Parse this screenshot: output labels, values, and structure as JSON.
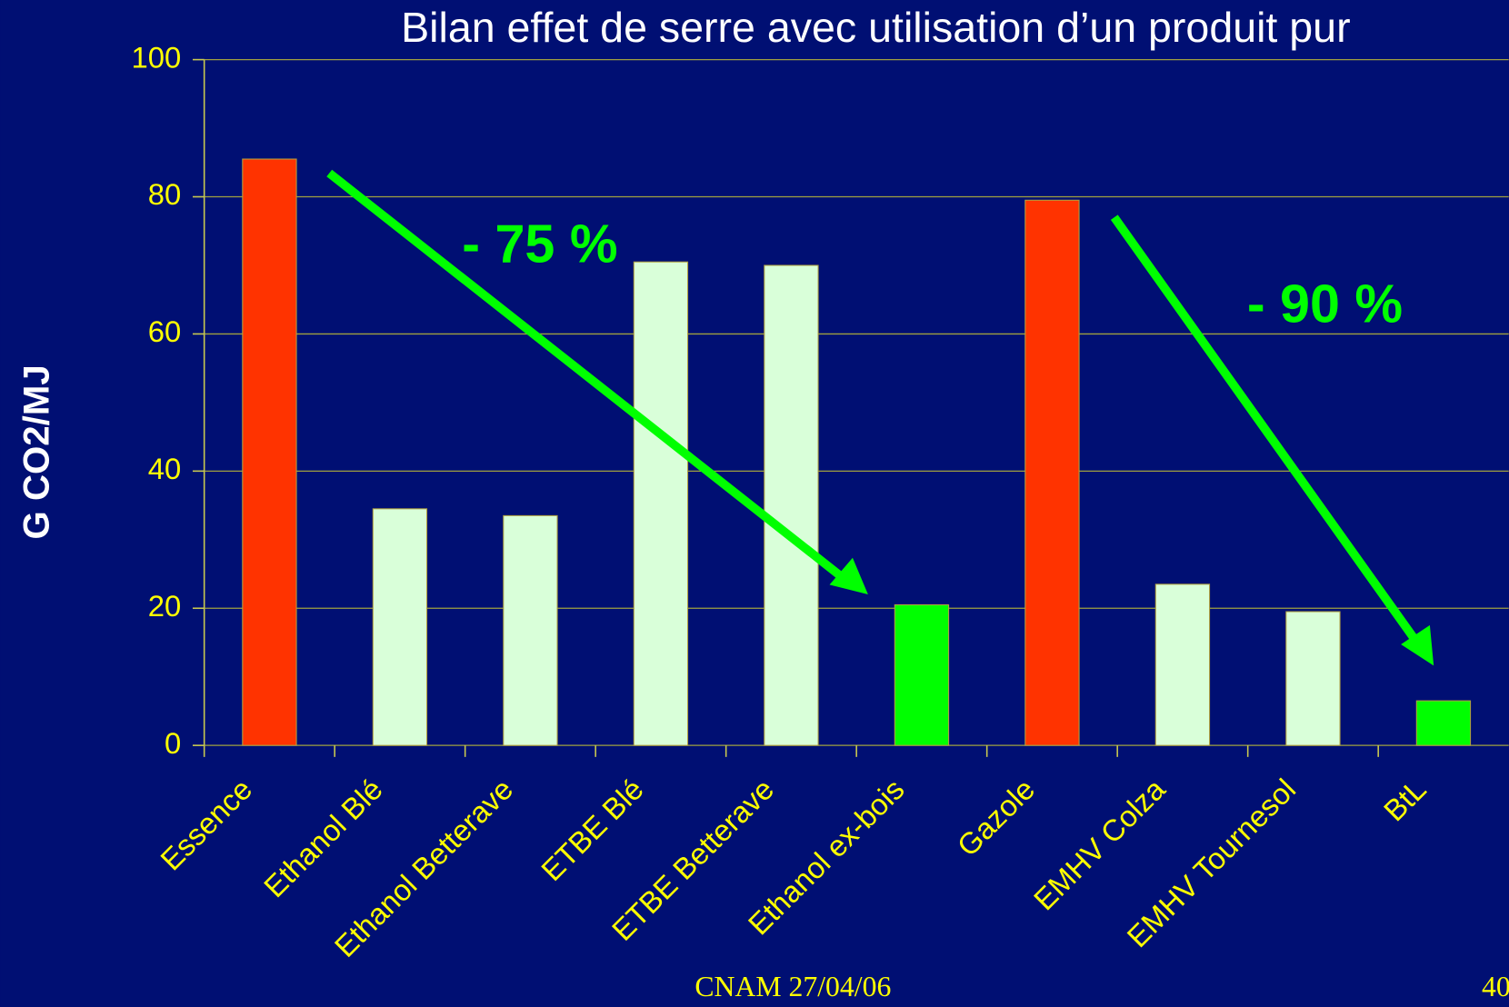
{
  "chart_data": {
    "type": "bar",
    "title": "Bilan effet de serre avec utilisation d’un produit pur",
    "y_label": "G CO2/MJ",
    "categories": [
      "Essence",
      "Ethanol Blé",
      "Ethanol Betterave",
      "ETBE Blé",
      "ETBE Betterave",
      "Ethanol ex-bois",
      "Gazole",
      "EMHV Colza",
      "EMHV Tournesol",
      "BtL"
    ],
    "values": [
      85.5,
      34.5,
      33.5,
      70.5,
      70,
      20.5,
      79.5,
      23.5,
      19.5,
      6.5
    ],
    "colors": [
      "#ff3300",
      "#d9ffd9",
      "#d9ffd9",
      "#d9ffd9",
      "#d9ffd9",
      "#00ff00",
      "#ff3300",
      "#d9ffd9",
      "#d9ffd9",
      "#00ff00"
    ],
    "ylim": [
      0,
      100
    ],
    "yticks": [
      0,
      20,
      40,
      60,
      80,
      100
    ],
    "grid": true,
    "annotations": [
      "- 75 %",
      "- 90 %"
    ],
    "footer": "CNAM 27/04/06",
    "page_number": "40"
  }
}
